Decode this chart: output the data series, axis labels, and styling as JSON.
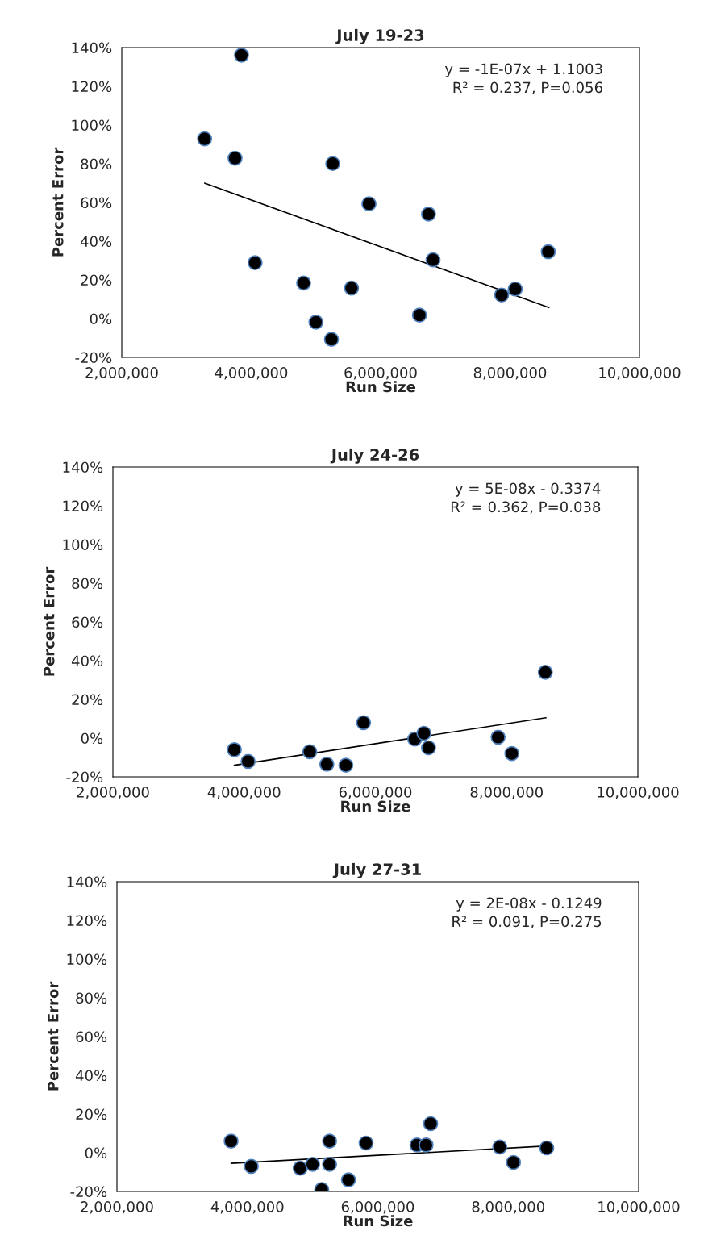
{
  "chart_data": [
    {
      "type": "scatter",
      "title": "July 19-23",
      "xlabel": "Run Size",
      "ylabel": "Percent Error",
      "xlim": [
        2000000,
        10000000
      ],
      "ylim": [
        -20,
        140
      ],
      "xticks": [
        {
          "value": 2000000,
          "label": "2,000,000"
        },
        {
          "value": 4000000,
          "label": "4,000,000"
        },
        {
          "value": 6000000,
          "label": "6,000,000"
        },
        {
          "value": 8000000,
          "label": "8,000,000"
        },
        {
          "value": 10000000,
          "label": "10,000,000"
        }
      ],
      "yticks": [
        {
          "value": -20,
          "label": "-20%"
        },
        {
          "value": 0,
          "label": "0%"
        },
        {
          "value": 20,
          "label": "20%"
        },
        {
          "value": 40,
          "label": "40%"
        },
        {
          "value": 60,
          "label": "60%"
        },
        {
          "value": 80,
          "label": "80%"
        },
        {
          "value": 100,
          "label": "100%"
        },
        {
          "value": 120,
          "label": "120%"
        },
        {
          "value": 140,
          "label": "140%"
        }
      ],
      "grid": false,
      "legend": false,
      "annotations": [
        "y = -1E-07x + 1.1003",
        "R² = 0.237, P=0.056"
      ],
      "series": [
        {
          "type": "scatter",
          "color": "#000000",
          "marker": "circle",
          "x": [
            3280000,
            3750000,
            3850000,
            4060000,
            4810000,
            5000000,
            5240000,
            5260000,
            5550000,
            5820000,
            6600000,
            6740000,
            6810000,
            7870000,
            8080000,
            8590000
          ],
          "values": [
            92.9,
            82.9,
            136.1,
            28.9,
            18.4,
            -1.8,
            -10.7,
            80.1,
            15.8,
            59.3,
            1.8,
            54.0,
            30.4,
            12.2,
            15.3,
            34.5
          ]
        },
        {
          "type": "line",
          "color": "#000000",
          "marker": "none",
          "line_style": "solid",
          "x": [
            3280000,
            8600000
          ],
          "values": [
            70.0,
            5.7
          ]
        }
      ]
    },
    {
      "type": "scatter",
      "title": "July 24-26",
      "xlabel": "Run Size",
      "ylabel": "Percent Error",
      "xlim": [
        2000000,
        10000000
      ],
      "ylim": [
        -20,
        140
      ],
      "xticks": [
        {
          "value": 2000000,
          "label": "2,000,000"
        },
        {
          "value": 4000000,
          "label": "4,000,000"
        },
        {
          "value": 6000000,
          "label": "6,000,000"
        },
        {
          "value": 8000000,
          "label": "8,000,000"
        },
        {
          "value": 10000000,
          "label": "10,000,000"
        }
      ],
      "yticks": [
        {
          "value": -20,
          "label": "-20%"
        },
        {
          "value": 0,
          "label": "0%"
        },
        {
          "value": 20,
          "label": "20%"
        },
        {
          "value": 40,
          "label": "40%"
        },
        {
          "value": 60,
          "label": "60%"
        },
        {
          "value": 80,
          "label": "80%"
        },
        {
          "value": 100,
          "label": "100%"
        },
        {
          "value": 120,
          "label": "120%"
        },
        {
          "value": 140,
          "label": "140%"
        }
      ],
      "grid": false,
      "legend": false,
      "annotations": [
        "y = 5E-08x - 0.3374",
        "R² = 0.362, P=0.038"
      ],
      "series": [
        {
          "type": "scatter",
          "color": "#000000",
          "marker": "circle",
          "x": [
            3850000,
            4060000,
            5000000,
            5260000,
            5550000,
            5820000,
            6600000,
            6740000,
            6810000,
            7870000,
            8080000,
            8590000
          ],
          "values": [
            -6,
            -12,
            -7,
            -13.5,
            -14,
            8,
            -0.5,
            2.5,
            -5,
            0.5,
            -8,
            34
          ]
        },
        {
          "type": "line",
          "color": "#000000",
          "marker": "none",
          "line_style": "solid",
          "x": [
            3850000,
            8600000
          ],
          "values": [
            -14,
            10.5
          ]
        }
      ]
    },
    {
      "type": "scatter",
      "title": "July 27-31",
      "xlabel": "Run Size",
      "ylabel": "Percent Error",
      "xlim": [
        2000000,
        10000000
      ],
      "ylim": [
        -20,
        140
      ],
      "xticks": [
        {
          "value": 2000000,
          "label": "2,000,000"
        },
        {
          "value": 4000000,
          "label": "4,000,000"
        },
        {
          "value": 6000000,
          "label": "6,000,000"
        },
        {
          "value": 8000000,
          "label": "8,000,000"
        },
        {
          "value": 10000000,
          "label": "10,000,000"
        }
      ],
      "yticks": [
        {
          "value": -20,
          "label": "-20%"
        },
        {
          "value": 0,
          "label": "0%"
        },
        {
          "value": 20,
          "label": "20%"
        },
        {
          "value": 40,
          "label": "40%"
        },
        {
          "value": 60,
          "label": "60%"
        },
        {
          "value": 80,
          "label": "80%"
        },
        {
          "value": 100,
          "label": "100%"
        },
        {
          "value": 120,
          "label": "120%"
        },
        {
          "value": 140,
          "label": "140%"
        }
      ],
      "grid": false,
      "legend": false,
      "annotations": [
        "y = 2E-08x - 0.1249",
        "R² = 0.091, P=0.275"
      ],
      "series": [
        {
          "type": "scatter",
          "color": "#000000",
          "marker": "circle",
          "x": [
            3750000,
            4060000,
            4810000,
            5000000,
            5140000,
            5260000,
            5260000,
            5550000,
            5820000,
            6600000,
            6740000,
            6810000,
            7870000,
            8080000,
            8590000
          ],
          "values": [
            6,
            -7,
            -8,
            -6,
            -19,
            6,
            -6,
            -14,
            5,
            4,
            4,
            15,
            3,
            -5,
            2.5
          ]
        },
        {
          "type": "line",
          "color": "#000000",
          "marker": "none",
          "line_style": "solid",
          "x": [
            3750000,
            8600000
          ],
          "values": [
            -5.5,
            3.5
          ]
        }
      ]
    }
  ]
}
